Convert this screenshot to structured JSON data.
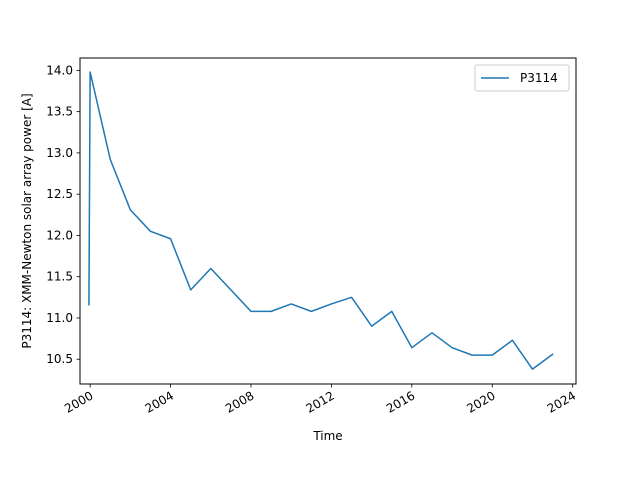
{
  "chart_data": {
    "type": "line",
    "title": "",
    "xlabel": "Time",
    "ylabel": "P3114: XMM-Newton solar array power [A]",
    "x_ticks": [
      "2000",
      "2004",
      "2008",
      "2012",
      "2016",
      "2020",
      "2024"
    ],
    "y_ticks": [
      "10.5",
      "11.0",
      "11.5",
      "12.0",
      "12.5",
      "13.0",
      "13.5",
      "14.0"
    ],
    "xlim": [
      "1999-07-01",
      "2024-03-01"
    ],
    "ylim": [
      10.2,
      14.15
    ],
    "grid": false,
    "legend_position": "top-right",
    "series": [
      {
        "name": "P3114",
        "color": "#1f77b4",
        "x": [
          "1999-12-10",
          "2000-01-01",
          "2001-01-01",
          "2002-01-01",
          "2003-01-01",
          "2004-01-01",
          "2005-01-01",
          "2006-01-01",
          "2007-01-01",
          "2008-01-01",
          "2009-01-01",
          "2010-01-01",
          "2011-01-01",
          "2012-01-01",
          "2013-01-01",
          "2014-01-01",
          "2015-01-01",
          "2016-01-01",
          "2017-01-01",
          "2018-01-01",
          "2019-01-01",
          "2020-01-01",
          "2021-01-01",
          "2022-01-01",
          "2023-01-01"
        ],
        "y": [
          11.16,
          13.98,
          12.92,
          12.31,
          12.05,
          11.96,
          11.34,
          11.6,
          11.34,
          11.08,
          11.08,
          11.17,
          11.08,
          11.17,
          11.25,
          10.9,
          11.08,
          10.64,
          10.82,
          10.64,
          10.55,
          10.55,
          10.73,
          10.38,
          10.56
        ]
      }
    ]
  }
}
